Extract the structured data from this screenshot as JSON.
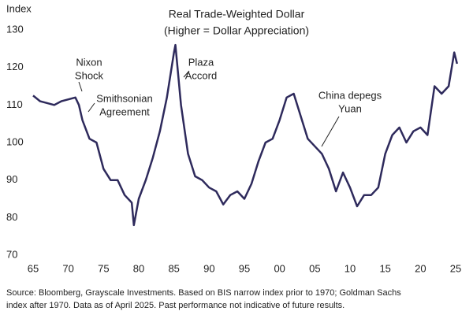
{
  "chart_data": {
    "type": "line",
    "title": "Real Trade-Weighted Dollar",
    "subtitle": "(Higher = Dollar Appreciation)",
    "y_label": "Index",
    "source": [
      "Source: Bloomberg, Grayscale Investments. Based on BIS narrow index prior to 1970; Goldman Sachs",
      "index after 1970. Data as of April 2025. Past performance not indicative of future results."
    ],
    "annotations": [
      [
        "Nixon",
        "Shock"
      ],
      [
        "Smithsonian",
        "Agreement"
      ],
      [
        "Plaza",
        "Accord"
      ],
      [
        "China depegs",
        "Yuan"
      ]
    ],
    "x": [
      1965,
      1966,
      1967,
      1968,
      1969,
      1970,
      1971,
      1971.5,
      1972,
      1973,
      1974,
      1975,
      1976,
      1977,
      1978,
      1979,
      1979.3,
      1980,
      1981,
      1982,
      1983,
      1984,
      1985,
      1985.2,
      1986,
      1987,
      1988,
      1989,
      1990,
      1991,
      1992,
      1993,
      1994,
      1995,
      1996,
      1997,
      1998,
      1999,
      2000,
      2001,
      2002,
      2003,
      2004,
      2005,
      2006,
      2007,
      2008,
      2009,
      2010,
      2011,
      2012,
      2013,
      2014,
      2015,
      2016,
      2017,
      2018,
      2019,
      2020,
      2021,
      2022,
      2023,
      2024,
      2024.8,
      2025.2
    ],
    "series": [
      {
        "name": "Real Trade-Weighted Dollar",
        "color": "#2e2a5c",
        "values": [
          112.5,
          111,
          110.5,
          110,
          111,
          111.5,
          112,
          110,
          106,
          101,
          100,
          93,
          90,
          90,
          86,
          84,
          78,
          85,
          90,
          96,
          103,
          112,
          124,
          126,
          110,
          97,
          91,
          90,
          88,
          87,
          83.5,
          86,
          87,
          85,
          89,
          95,
          100,
          101,
          106,
          112,
          113,
          107,
          101,
          99,
          97,
          93,
          87,
          92,
          88,
          83,
          86,
          86,
          88,
          97,
          102,
          104,
          100,
          103,
          104,
          102,
          115,
          113,
          115,
          124,
          121
        ]
      }
    ],
    "xlim": [
      1965,
      2025.5
    ],
    "xticks": [
      {
        "value": 1965,
        "label": "65"
      },
      {
        "value": 1970,
        "label": "70"
      },
      {
        "value": 1975,
        "label": "75"
      },
      {
        "value": 1980,
        "label": "80"
      },
      {
        "value": 1985,
        "label": "85"
      },
      {
        "value": 1990,
        "label": "90"
      },
      {
        "value": 1995,
        "label": "95"
      },
      {
        "value": 2000,
        "label": "00"
      },
      {
        "value": 2005,
        "label": "05"
      },
      {
        "value": 2010,
        "label": "10"
      },
      {
        "value": 2015,
        "label": "15"
      },
      {
        "value": 2020,
        "label": "20"
      },
      {
        "value": 2025,
        "label": "25"
      }
    ],
    "ylim": [
      70,
      130
    ],
    "yticks": [
      70,
      80,
      90,
      100,
      110,
      120,
      130
    ],
    "grid": false
  }
}
